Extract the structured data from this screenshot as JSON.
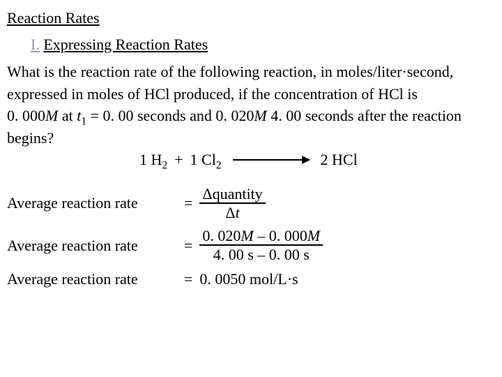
{
  "title": "Reaction Rates",
  "section": {
    "num": "I.",
    "label": "Expressing Reaction Rates"
  },
  "problem": {
    "l1a": "What is the reaction rate of the following reaction, in moles/liter·second,",
    "l2": "expressed in moles of HCl produced, if the concentration of HCl is",
    "l3a": "0. 000",
    "l3b": "M",
    "l3c": " at ",
    "l3d": "t",
    "l3e": "1",
    "l3f": " = 0. 00 seconds and 0. 020",
    "l3g": "M",
    "l3h": " 4. 00 seconds after the reaction",
    "l4": "begins?"
  },
  "equation": {
    "r1a": "1 H",
    "r1b": "2",
    "plus": "+",
    "r2a": "1 Cl",
    "r2b": "2",
    "p1": "2 HCl"
  },
  "rates": {
    "label": "Average reaction rate",
    "eq": "=",
    "r1num": "Δquantity",
    "r1den_a": "Δ",
    "r1den_b": "t",
    "r2num_a": "0. 020",
    "r2num_b": "M",
    "r2num_c": " – 0. 000",
    "r2num_d": "M",
    "r2den": "4. 00 s – 0. 00 s",
    "r3": "0. 0050 mol/L·s"
  }
}
